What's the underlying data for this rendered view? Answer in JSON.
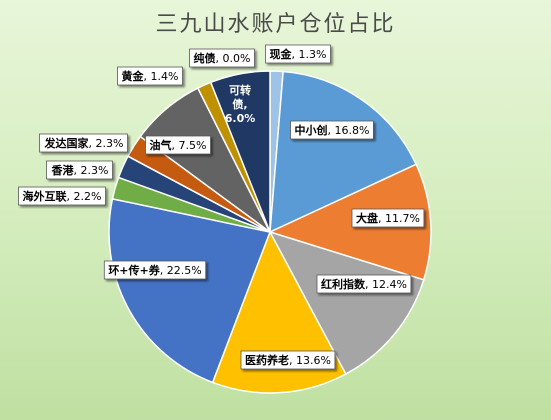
{
  "chart_data": {
    "type": "pie",
    "title": "三九山水账户仓位占比",
    "slices": [
      {
        "label": "现金",
        "value": 1.3,
        "value_label": "1.3%",
        "color": "#9dc3e6"
      },
      {
        "label": "中小创",
        "value": 16.8,
        "value_label": "16.8%",
        "color": "#5b9bd5"
      },
      {
        "label": "大盘",
        "value": 11.7,
        "value_label": "11.7%",
        "color": "#ed7d31"
      },
      {
        "label": "红利指数",
        "value": 12.4,
        "value_label": "12.4%",
        "color": "#a5a5a5"
      },
      {
        "label": "医药养老",
        "value": 13.6,
        "value_label": "13.6%",
        "color": "#ffc000"
      },
      {
        "label": "环+传+券",
        "value": 22.5,
        "value_label": "22.5%",
        "color": "#4472c4"
      },
      {
        "label": "海外互联",
        "value": 2.2,
        "value_label": "2.2%",
        "color": "#70ad47"
      },
      {
        "label": "香港",
        "value": 2.3,
        "value_label": "2.3%",
        "color": "#264478"
      },
      {
        "label": "发达国家",
        "value": 2.3,
        "value_label": "2.3%",
        "color": "#c55a11"
      },
      {
        "label": "油气",
        "value": 7.5,
        "value_label": "7.5%",
        "color": "#636363"
      },
      {
        "label": "黄金",
        "value": 1.4,
        "value_label": "1.4%",
        "color": "#bf9000"
      },
      {
        "label": "可转债",
        "value": 6.0,
        "value_label": "6.0%",
        "color": "#203864"
      },
      {
        "label": "纯债",
        "value": 0.0,
        "value_label": "0.0%",
        "color": "#375623"
      }
    ],
    "legend": "none",
    "label_style": "data-callouts"
  }
}
